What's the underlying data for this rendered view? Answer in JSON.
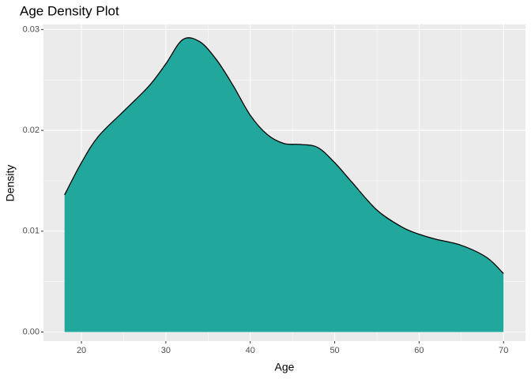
{
  "chart_data": {
    "type": "area",
    "title": "Age Density Plot",
    "x_label": "Age",
    "y_label": "Density",
    "x": [
      18,
      20,
      22,
      25,
      28,
      30,
      32,
      34,
      36,
      38,
      40,
      42,
      44,
      46,
      48,
      50,
      52,
      55,
      58,
      60,
      62,
      65,
      68,
      70
    ],
    "series": [
      {
        "name": "Density",
        "color": "#22a79c",
        "line_color": "#000000",
        "values": [
          0.0136,
          0.0168,
          0.0194,
          0.0219,
          0.0244,
          0.0266,
          0.029,
          0.0288,
          0.027,
          0.0244,
          0.0215,
          0.0196,
          0.0187,
          0.0186,
          0.0183,
          0.0168,
          0.0149,
          0.0121,
          0.0104,
          0.0097,
          0.0092,
          0.0086,
          0.0074,
          0.0058
        ]
      }
    ],
    "xlim": [
      15.5,
      72.6
    ],
    "ylim": [
      -0.0009,
      0.0305
    ],
    "xticks": [
      20,
      30,
      40,
      50,
      60,
      70
    ],
    "yticks": [
      {
        "value": 0,
        "label": "0.00"
      },
      {
        "value": 0.01,
        "label": "0.01"
      },
      {
        "value": 0.02,
        "label": "0.02"
      },
      {
        "value": 0.03,
        "label": "0.03"
      }
    ],
    "x_minor_ticks": [
      25,
      35,
      45,
      55,
      65
    ],
    "y_minor_ticks": [
      0.005,
      0.015,
      0.025
    ],
    "grid": true,
    "panel_color": "#ebebeb"
  }
}
